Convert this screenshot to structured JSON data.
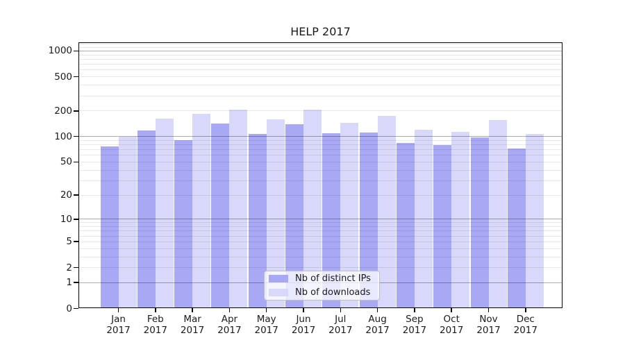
{
  "title": "HELP 2017",
  "colors": {
    "series_ips": "#a8a8f5",
    "series_downloads": "#d8d8fa",
    "grid_minor": "rgba(0,0,0,0.085)",
    "grid_major": "rgba(0,0,0,0.32)",
    "axis_frame": "#000000",
    "text": "#1a1a1a",
    "legend_border": "#bfbfbf"
  },
  "chart_data": {
    "type": "bar",
    "title": "HELP 2017",
    "categories": [
      "Jan 2017",
      "Feb 2017",
      "Mar 2017",
      "Apr 2017",
      "May 2017",
      "Jun 2017",
      "Jul 2017",
      "Aug 2017",
      "Sep 2017",
      "Oct 2017",
      "Nov 2017",
      "Dec 2017"
    ],
    "series": [
      {
        "name": "Nb of distinct IPs",
        "color": "#a8a8f5",
        "values": [
          76,
          117,
          91,
          141,
          108,
          140,
          110,
          112,
          84,
          79,
          98,
          72
        ]
      },
      {
        "name": "Nb of downloads",
        "color": "#d8d8fa",
        "values": [
          100,
          162,
          184,
          207,
          158,
          207,
          146,
          176,
          121,
          114,
          157,
          107
        ]
      }
    ],
    "xlabel": "",
    "ylabel": "",
    "yscale": "log1p (symlog-like axis that includes 0)",
    "yticks": [
      0,
      1,
      2,
      5,
      10,
      20,
      50,
      100,
      200,
      500,
      1000
    ],
    "ylim": [
      0,
      1262
    ],
    "grid": "on",
    "legend_position": "inside bottom-center"
  }
}
